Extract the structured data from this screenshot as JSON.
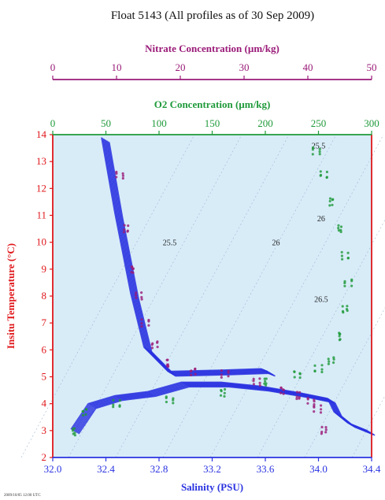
{
  "title": "Float 5143  (All profiles as of 30 Sep 2009)",
  "footer_note": "2009/10/05 12:00 UTC",
  "colors": {
    "plot_bg": "#d8ecf8",
    "salinity": "#2a33e0",
    "nitrate": "#9a1a78",
    "oxygen": "#1f9a3a",
    "temp_axis": "#e0171b",
    "density": "#9fb7cf"
  },
  "chart_data": {
    "type": "scatter",
    "title": "Float 5143  (All profiles as of 30 Sep 2009)",
    "y_axis": {
      "label": "Insitu Temperature (°C)",
      "range": [
        2,
        14
      ],
      "ticks": [
        2,
        3,
        4,
        5,
        6,
        7,
        8,
        9,
        10,
        11,
        12,
        13,
        14
      ]
    },
    "x_axes": [
      {
        "id": "salinity",
        "label": "Salinity (PSU)",
        "position": "bottom",
        "range": [
          32.0,
          34.4
        ],
        "ticks": [
          32.0,
          32.4,
          32.8,
          33.2,
          33.6,
          34.0,
          34.4
        ],
        "tick_labels": [
          "32.0",
          "32.4",
          "32.8",
          "33.2",
          "33.6",
          "34.0",
          "34.4"
        ]
      },
      {
        "id": "oxygen",
        "label": "O2 Concentration (µm/kg)",
        "position": "top",
        "range": [
          0,
          300
        ],
        "ticks": [
          0,
          50,
          100,
          150,
          200,
          250,
          300
        ]
      },
      {
        "id": "nitrate",
        "label": "Nitrate Concentration (µm/kg)",
        "position": "top-outer",
        "range": [
          0,
          50
        ],
        "ticks": [
          0,
          10,
          20,
          30,
          40,
          50
        ]
      }
    ],
    "density_contours": {
      "labels": [
        {
          "text": "25.5",
          "salinity": 32.88,
          "temp": 10.0
        },
        {
          "text": "26",
          "salinity": 33.68,
          "temp": 10.0
        },
        {
          "text": "25.5",
          "salinity": 34.0,
          "temp": 13.6
        },
        {
          "text": "26",
          "salinity": 34.02,
          "temp": 10.9
        },
        {
          "text": "26.5",
          "salinity": 34.02,
          "temp": 7.9
        }
      ]
    },
    "series": [
      {
        "name": "Salinity",
        "axis": "salinity",
        "style": "lines",
        "x": [
          32.17,
          32.3,
          32.5,
          32.75,
          33.0,
          33.3,
          33.6,
          33.9,
          34.1,
          34.15,
          34.25,
          34.4
        ],
        "y": [
          2.95,
          3.9,
          4.2,
          4.35,
          4.7,
          4.7,
          4.55,
          4.3,
          4.1,
          3.6,
          3.2,
          2.9
        ]
      },
      {
        "name": "Salinity upper",
        "axis": "salinity",
        "style": "lines",
        "x": [
          32.4,
          32.5,
          32.62,
          32.72,
          32.9,
          33.3,
          33.6,
          33.65
        ],
        "y": [
          13.8,
          11.0,
          8.0,
          6.0,
          5.1,
          5.15,
          5.2,
          5.1
        ]
      },
      {
        "name": "Nitrate",
        "axis": "nitrate",
        "style": "points",
        "x": [
          10.5,
          11.5,
          12.5,
          13.5,
          14.5,
          16.0,
          18.0,
          22.0,
          27.0,
          32.0,
          36.0,
          38.5,
          40.5,
          41.5,
          42.5
        ],
        "y": [
          12.5,
          10.5,
          9.0,
          8.0,
          7.0,
          6.2,
          5.5,
          5.2,
          5.1,
          4.8,
          4.5,
          4.3,
          4.1,
          3.8,
          3.0
        ]
      },
      {
        "name": "Oxygen",
        "axis": "oxygen",
        "style": "points",
        "x": [
          20,
          30,
          60,
          110,
          160,
          200,
          230,
          250,
          262,
          270,
          275,
          278,
          275,
          270,
          262,
          255,
          248
        ],
        "y": [
          2.95,
          3.7,
          4.0,
          4.15,
          4.4,
          4.8,
          5.1,
          5.3,
          5.6,
          6.5,
          7.5,
          8.5,
          9.5,
          10.5,
          11.5,
          12.5,
          13.4
        ]
      }
    ]
  }
}
